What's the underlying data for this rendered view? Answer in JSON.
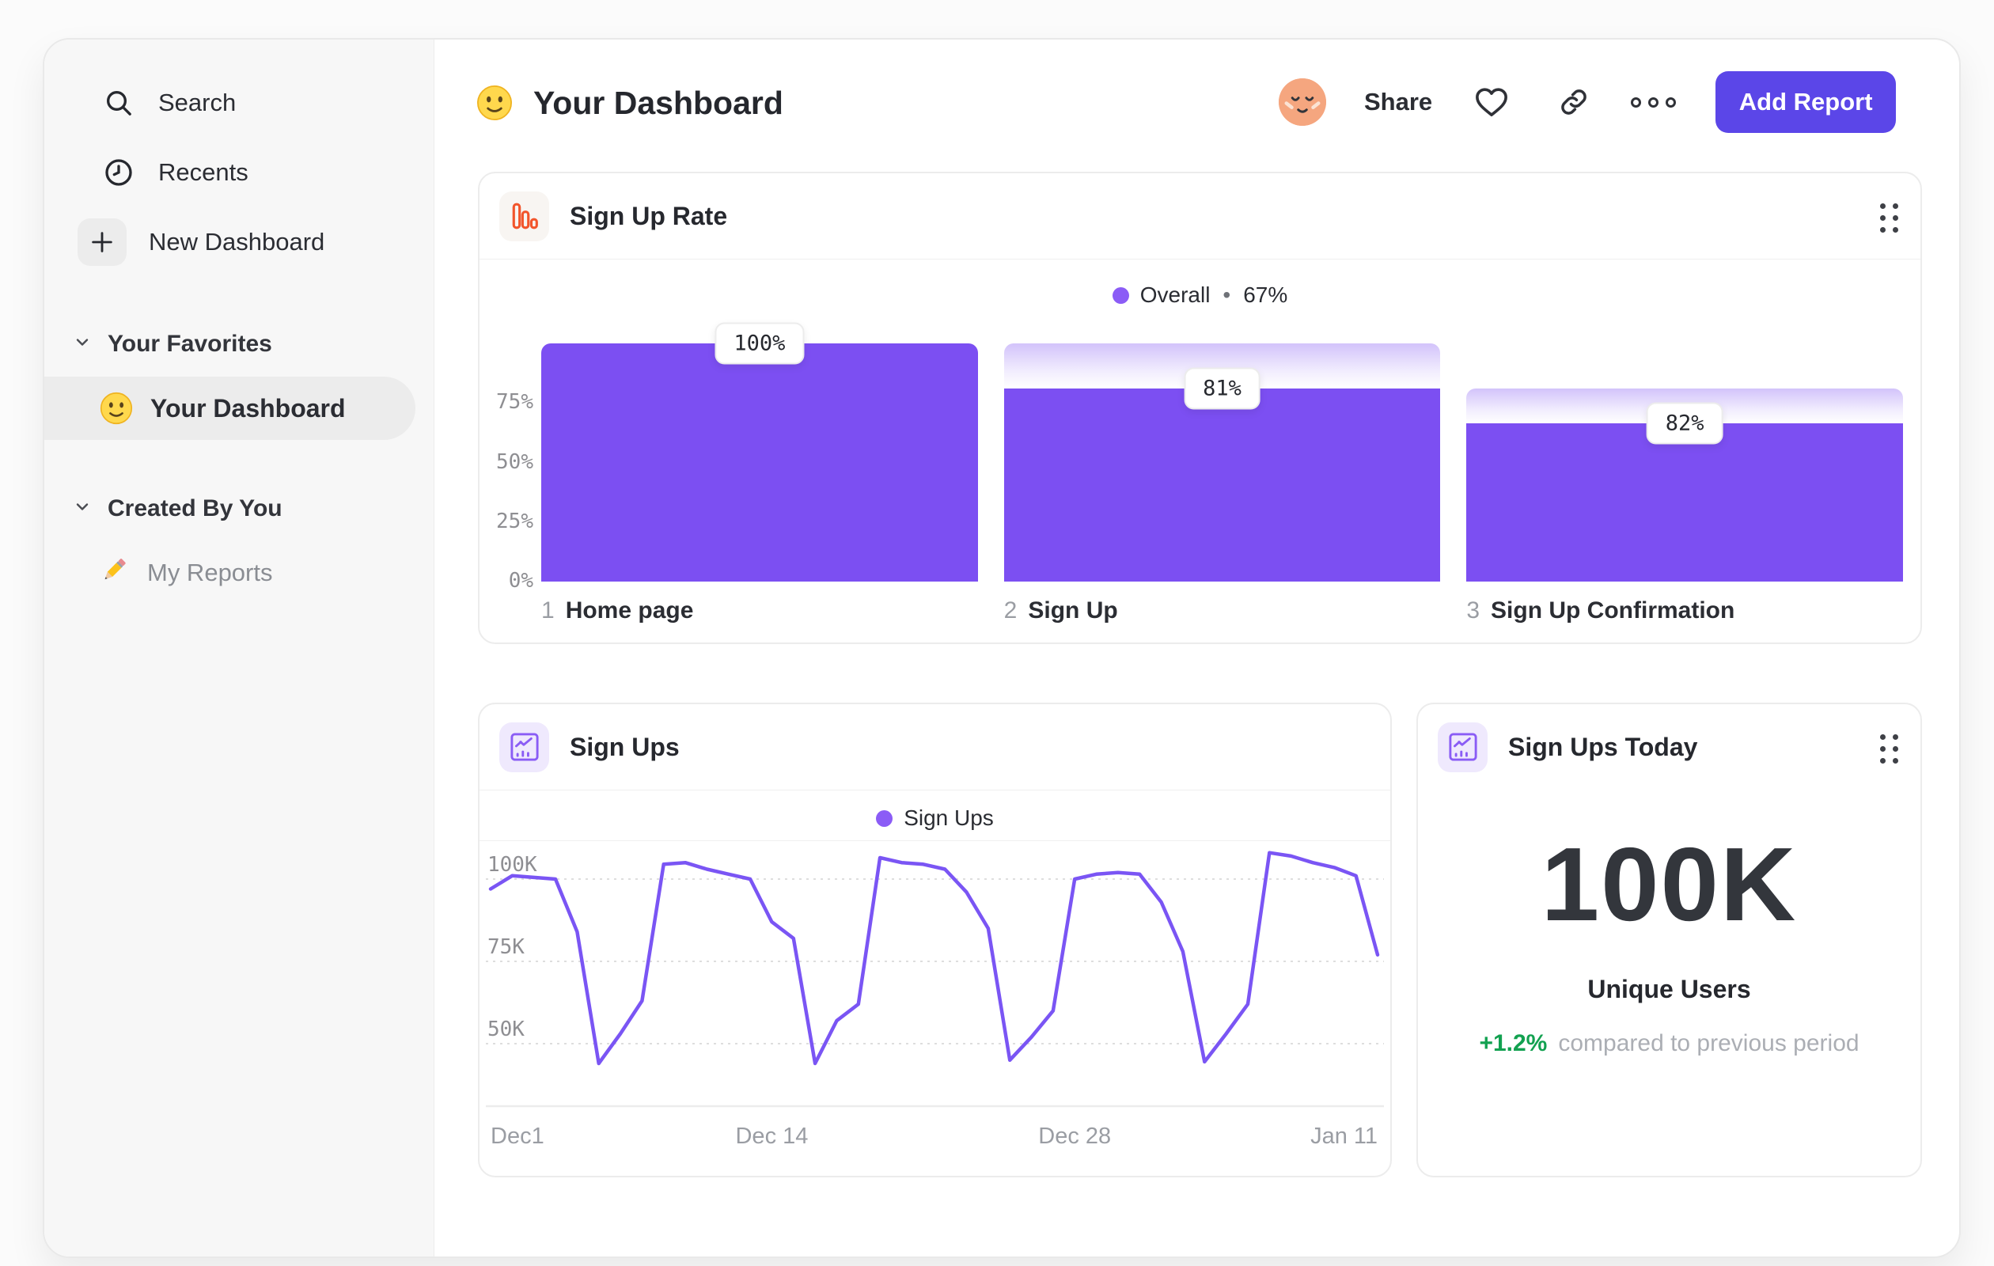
{
  "colors": {
    "accent_purple": "#7C4FF2",
    "legend_purple": "#8B5CF6",
    "line_purple": "#7A55F4",
    "button_purple": "#5B46E8",
    "orange_icon": "#F2552C",
    "green_positive": "#12A150",
    "sidebar_bg": "#F7F7F7"
  },
  "sidebar": {
    "search": "Search",
    "recents": "Recents",
    "new_dashboard": "New Dashboard",
    "favorites_header": "Your Favorites",
    "favorite_item": "Your Dashboard",
    "created_header": "Created By You",
    "created_item": "My Reports"
  },
  "header": {
    "title": "Your Dashboard",
    "share": "Share",
    "add_report": "Add Report"
  },
  "cards": {
    "sign_up_rate": {
      "title": "Sign Up Rate",
      "legend": {
        "label": "Overall",
        "separator": "•",
        "value": "67%"
      }
    },
    "sign_ups": {
      "title": "Sign Ups",
      "legend": {
        "label": "Sign Ups"
      }
    },
    "sign_ups_today": {
      "title": "Sign Ups Today",
      "value": "100K",
      "unit_label": "Unique Users",
      "delta": "+1.2%",
      "delta_caption": "compared to previous period"
    }
  },
  "chart_data": [
    {
      "type": "bar",
      "subtype": "funnel",
      "title": "Sign Up Rate",
      "legend": "Overall • 67%",
      "overall_pct": 67,
      "yticks": [
        {
          "label": "75%",
          "value": 75
        },
        {
          "label": "50%",
          "value": 50
        },
        {
          "label": "25%",
          "value": 25
        },
        {
          "label": "0%",
          "value": 0
        }
      ],
      "ylim": [
        0,
        100
      ],
      "steps": [
        {
          "index": "1",
          "label": "Home page",
          "conversion_label": "100%",
          "conversion_pct": 100,
          "cumulative_pct": 100
        },
        {
          "index": "2",
          "label": "Sign Up",
          "conversion_label": "81%",
          "conversion_pct": 81,
          "cumulative_pct": 81
        },
        {
          "index": "3",
          "label": "Sign Up Confirmation",
          "conversion_label": "82%",
          "conversion_pct": 82,
          "cumulative_pct": 66.4
        }
      ]
    },
    {
      "type": "line",
      "title": "Sign Ups",
      "series": [
        {
          "name": "Sign Ups",
          "unit": "K",
          "values": [
            97,
            101,
            100.5,
            100,
            84,
            44,
            53,
            63,
            104.5,
            105,
            103,
            101.5,
            100,
            87,
            82,
            44,
            57,
            62,
            106.5,
            105,
            104.5,
            103,
            96,
            85,
            45,
            52,
            60,
            100,
            101.5,
            102,
            101.5,
            93,
            78,
            44.5,
            53,
            62,
            108,
            107,
            105,
            103.5,
            101,
            77
          ]
        }
      ],
      "x_range": [
        "Dec 1",
        "Jan 11"
      ],
      "xticks": [
        {
          "label": "Dec1",
          "index": 0
        },
        {
          "label": "Dec 14",
          "index": 13
        },
        {
          "label": "Dec 28",
          "index": 27
        },
        {
          "label": "Jan 11",
          "index": 41
        }
      ],
      "yticks": [
        {
          "label": "100K",
          "value": 100
        },
        {
          "label": "75K",
          "value": 75
        },
        {
          "label": "50K",
          "value": 50
        }
      ],
      "grid": "dashed horizontal",
      "legend_position": "top-center"
    }
  ]
}
